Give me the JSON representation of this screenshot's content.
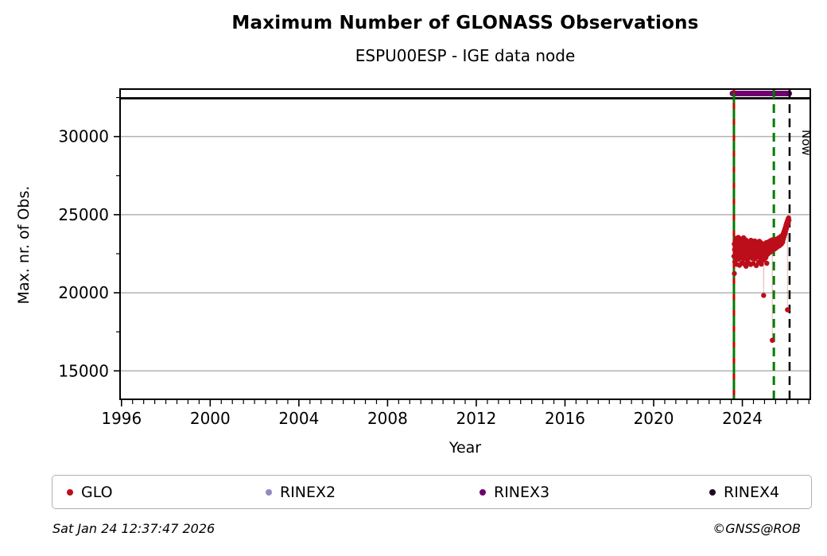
{
  "header": {
    "title": "Maximum Number of GLONASS Observations",
    "subtitle": "ESPU00ESP - IGE data node"
  },
  "footer": {
    "timestamp": "Sat Jan 24 12:37:47 2026",
    "credit": "©GNSS@ROB"
  },
  "legend": {
    "items": [
      {
        "label": "GLO",
        "color": "#bb0e1a"
      },
      {
        "label": "RINEX2",
        "color": "#8f8ac2"
      },
      {
        "label": "RINEX3",
        "color": "#700070"
      },
      {
        "label": "RINEX4",
        "color": "#200a22"
      }
    ]
  },
  "chart_data": {
    "type": "scatter",
    "title": "Maximum Number of GLONASS Observations",
    "subtitle": "ESPU00ESP - IGE data node",
    "xlabel": "Year",
    "ylabel": "Max. nr. of Obs.",
    "xlim": [
      1995.9,
      2027.1
    ],
    "ylim": [
      13130,
      33090
    ],
    "grid": "horizontal-major-only",
    "grid_color": "#b3b3b3",
    "x_major_ticks": [
      1996,
      2000,
      2004,
      2008,
      2012,
      2016,
      2020,
      2024
    ],
    "x_minor_step": 0.5,
    "y_major_ticks": [
      15000,
      20000,
      25000,
      30000
    ],
    "y_minor_ticks": [
      17500,
      22500,
      27500,
      32500
    ],
    "top_line": {
      "name": "rinex4-span-line",
      "y": 32450,
      "color": "#000000"
    },
    "availability_bars": [
      {
        "name": "RINEX3",
        "start": 2023.55,
        "end": 2026.12,
        "y": 32760,
        "color": "#700070",
        "thickness": 7
      }
    ],
    "vlines": [
      {
        "name": "first-obs-line",
        "x": 2023.62,
        "style": "solid",
        "color": "#007c00",
        "overlay_dash_color": "#cc0000",
        "width": 3
      },
      {
        "name": "last-obs-line",
        "x": 2025.42,
        "style": "dashed",
        "color": "#007c00",
        "width": 3
      },
      {
        "name": "now-line",
        "x": 2026.13,
        "style": "dashed",
        "color": "#000000",
        "width": 2.5
      }
    ],
    "annotations": {
      "now": "Now"
    },
    "legend_entries": [
      "GLO",
      "RINEX2",
      "RINEX3",
      "RINEX4"
    ],
    "series": [
      {
        "name": "GLO",
        "color": "#bb0e1a",
        "line_color": "rgba(200,60,60,0.35)",
        "marker_radius": 3.2,
        "points": [
          [
            2023.62,
            22340
          ],
          [
            2023.634,
            23120
          ],
          [
            2023.641,
            21230
          ],
          [
            2023.648,
            22760
          ],
          [
            2023.662,
            21980
          ],
          [
            2023.676,
            23350
          ],
          [
            2023.69,
            22510
          ],
          [
            2023.704,
            23040
          ],
          [
            2023.718,
            22230
          ],
          [
            2023.732,
            23480
          ],
          [
            2023.746,
            21820
          ],
          [
            2023.76,
            22640
          ],
          [
            2023.774,
            23210
          ],
          [
            2023.788,
            22870
          ],
          [
            2023.802,
            22380
          ],
          [
            2023.816,
            23550
          ],
          [
            2023.83,
            22150
          ],
          [
            2023.844,
            22930
          ],
          [
            2023.858,
            23380
          ],
          [
            2023.872,
            21760
          ],
          [
            2023.886,
            22480
          ],
          [
            2023.9,
            23160
          ],
          [
            2023.914,
            22700
          ],
          [
            2023.928,
            23440
          ],
          [
            2023.942,
            22250
          ],
          [
            2023.956,
            22880
          ],
          [
            2023.97,
            21900
          ],
          [
            2023.984,
            23060
          ],
          [
            2023.998,
            22520
          ],
          [
            2024.012,
            23280
          ],
          [
            2024.026,
            22610
          ],
          [
            2024.04,
            22170
          ],
          [
            2024.054,
            23520
          ],
          [
            2024.068,
            22820
          ],
          [
            2024.082,
            21850
          ],
          [
            2024.096,
            22310
          ],
          [
            2024.11,
            23100
          ],
          [
            2024.124,
            22740
          ],
          [
            2024.138,
            23400
          ],
          [
            2024.152,
            22460
          ],
          [
            2024.166,
            21700
          ],
          [
            2024.18,
            22950
          ],
          [
            2024.194,
            23330
          ],
          [
            2024.208,
            22590
          ],
          [
            2024.222,
            22100
          ],
          [
            2024.236,
            23230
          ],
          [
            2024.25,
            22800
          ],
          [
            2024.264,
            21930
          ],
          [
            2024.278,
            22420
          ],
          [
            2024.292,
            23010
          ],
          [
            2024.306,
            22660
          ],
          [
            2024.32,
            22280
          ],
          [
            2024.334,
            23150
          ],
          [
            2024.348,
            22530
          ],
          [
            2024.362,
            22900
          ],
          [
            2024.376,
            21810
          ],
          [
            2024.39,
            23360
          ],
          [
            2024.404,
            22690
          ],
          [
            2024.418,
            22350
          ],
          [
            2024.432,
            22980
          ],
          [
            2024.446,
            22210
          ],
          [
            2024.46,
            23270
          ],
          [
            2024.474,
            22570
          ],
          [
            2024.488,
            21880
          ],
          [
            2024.502,
            22890
          ],
          [
            2024.516,
            23190
          ],
          [
            2024.53,
            22440
          ],
          [
            2024.544,
            22760
          ],
          [
            2024.558,
            23320
          ],
          [
            2024.572,
            22180
          ],
          [
            2024.586,
            22620
          ],
          [
            2024.6,
            23080
          ],
          [
            2024.614,
            22390
          ],
          [
            2024.628,
            21740
          ],
          [
            2024.642,
            22850
          ],
          [
            2024.656,
            23240
          ],
          [
            2024.67,
            22500
          ],
          [
            2024.684,
            22940
          ],
          [
            2024.698,
            22290
          ],
          [
            2024.712,
            23130
          ],
          [
            2024.726,
            22560
          ],
          [
            2024.74,
            21960
          ],
          [
            2024.754,
            22830
          ],
          [
            2024.768,
            23300
          ],
          [
            2024.782,
            22470
          ],
          [
            2024.796,
            22720
          ],
          [
            2024.81,
            23020
          ],
          [
            2024.824,
            22240
          ],
          [
            2024.838,
            22910
          ],
          [
            2024.852,
            21830
          ],
          [
            2024.866,
            23180
          ],
          [
            2024.88,
            22550
          ],
          [
            2024.894,
            22060
          ],
          [
            2024.908,
            22790
          ],
          [
            2024.922,
            23090
          ],
          [
            2024.936,
            22330
          ],
          [
            2024.95,
            22680
          ],
          [
            2024.96,
            19830
          ],
          [
            2024.978,
            22120
          ],
          [
            2024.992,
            22860
          ],
          [
            2025.006,
            22410
          ],
          [
            2025.02,
            23060
          ],
          [
            2025.034,
            22590
          ],
          [
            2025.048,
            22950
          ],
          [
            2025.062,
            22260
          ],
          [
            2025.076,
            23210
          ],
          [
            2025.09,
            22640
          ],
          [
            2025.104,
            21890
          ],
          [
            2025.118,
            23010
          ],
          [
            2025.132,
            22740
          ],
          [
            2025.146,
            22470
          ],
          [
            2025.16,
            23150
          ],
          [
            2025.174,
            22820
          ],
          [
            2025.188,
            22550
          ],
          [
            2025.202,
            23280
          ],
          [
            2025.216,
            22690
          ],
          [
            2025.23,
            22930
          ],
          [
            2025.244,
            23100
          ],
          [
            2025.258,
            22600
          ],
          [
            2025.272,
            23340
          ],
          [
            2025.286,
            22780
          ],
          [
            2025.3,
            23030
          ],
          [
            2025.314,
            22660
          ],
          [
            2025.328,
            23200
          ],
          [
            2025.342,
            22870
          ],
          [
            2025.35,
            16960
          ],
          [
            2025.356,
            23390
          ],
          [
            2025.37,
            22960
          ],
          [
            2025.384,
            23120
          ],
          [
            2025.398,
            22760
          ],
          [
            2025.412,
            23260
          ],
          [
            2025.426,
            22900
          ],
          [
            2025.44,
            23050
          ],
          [
            2025.454,
            23330
          ],
          [
            2025.468,
            22810
          ],
          [
            2025.482,
            23170
          ],
          [
            2025.496,
            22980
          ],
          [
            2025.51,
            23420
          ],
          [
            2025.524,
            23080
          ],
          [
            2025.538,
            22890
          ],
          [
            2025.552,
            23310
          ],
          [
            2025.566,
            23020
          ],
          [
            2025.58,
            23460
          ],
          [
            2025.594,
            23140
          ],
          [
            2025.608,
            22960
          ],
          [
            2025.622,
            23380
          ],
          [
            2025.636,
            23090
          ],
          [
            2025.65,
            23520
          ],
          [
            2025.664,
            23230
          ],
          [
            2025.678,
            23020
          ],
          [
            2025.692,
            23440
          ],
          [
            2025.706,
            23160
          ],
          [
            2025.72,
            23590
          ],
          [
            2025.734,
            23280
          ],
          [
            2025.748,
            23480
          ],
          [
            2025.762,
            23120
          ],
          [
            2025.776,
            23650
          ],
          [
            2025.79,
            23360
          ],
          [
            2025.804,
            23560
          ],
          [
            2025.818,
            23250
          ],
          [
            2025.832,
            23720
          ],
          [
            2025.846,
            23430
          ],
          [
            2025.86,
            23840
          ],
          [
            2025.874,
            23570
          ],
          [
            2025.888,
            23960
          ],
          [
            2025.902,
            23700
          ],
          [
            2025.916,
            24080
          ],
          [
            2025.93,
            23820
          ],
          [
            2025.944,
            24200
          ],
          [
            2025.958,
            23980
          ],
          [
            2025.972,
            24340
          ],
          [
            2025.986,
            24120
          ],
          [
            2026.0,
            24460
          ],
          [
            2026.014,
            24250
          ],
          [
            2026.028,
            24580
          ],
          [
            2026.034,
            18910
          ],
          [
            2026.042,
            24380
          ],
          [
            2026.056,
            24700
          ],
          [
            2026.07,
            24520
          ],
          [
            2026.084,
            24790
          ],
          [
            2026.098,
            24640
          ]
        ]
      }
    ]
  }
}
